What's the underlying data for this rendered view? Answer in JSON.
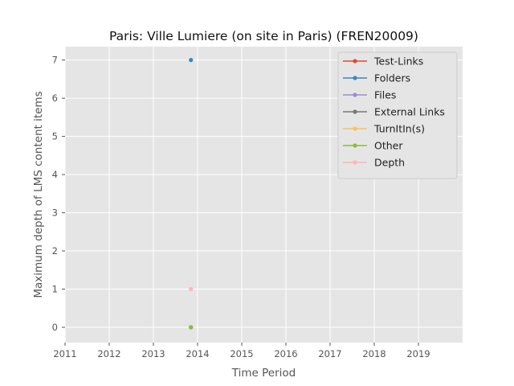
{
  "chart_data": {
    "type": "line",
    "title": "Paris: Ville Lumiere (on site in Paris) (FREN20009)",
    "xlabel": "Time Period",
    "ylabel": "Maximum depth of LMS content items",
    "xlim": [
      2011,
      2020
    ],
    "ylim": [
      -0.4,
      7.35
    ],
    "x_ticks": [
      "2011",
      "2012",
      "2013",
      "2014",
      "2015",
      "2016",
      "2017",
      "2018",
      "2019"
    ],
    "y_ticks": [
      "0",
      "1",
      "2",
      "3",
      "4",
      "5",
      "6",
      "7"
    ],
    "grid": true,
    "legend_position": "top-right",
    "series": [
      {
        "name": "Test-Links",
        "color": "#E24A33",
        "points": [
          [
            2013.85,
            0
          ]
        ]
      },
      {
        "name": "Folders",
        "color": "#348ABD",
        "points": [
          [
            2013.85,
            7
          ]
        ]
      },
      {
        "name": "Files",
        "color": "#988ED5",
        "points": [
          [
            2013.85,
            0
          ]
        ]
      },
      {
        "name": "External Links",
        "color": "#777777",
        "points": [
          [
            2013.85,
            0
          ]
        ]
      },
      {
        "name": "TurnItIn(s)",
        "color": "#FBC15E",
        "points": [
          [
            2013.85,
            0
          ]
        ]
      },
      {
        "name": "Other",
        "color": "#8EBA42",
        "points": [
          [
            2013.85,
            0
          ]
        ]
      },
      {
        "name": "Depth",
        "color": "#FFB5B8",
        "points": [
          [
            2013.85,
            1
          ]
        ]
      }
    ]
  }
}
